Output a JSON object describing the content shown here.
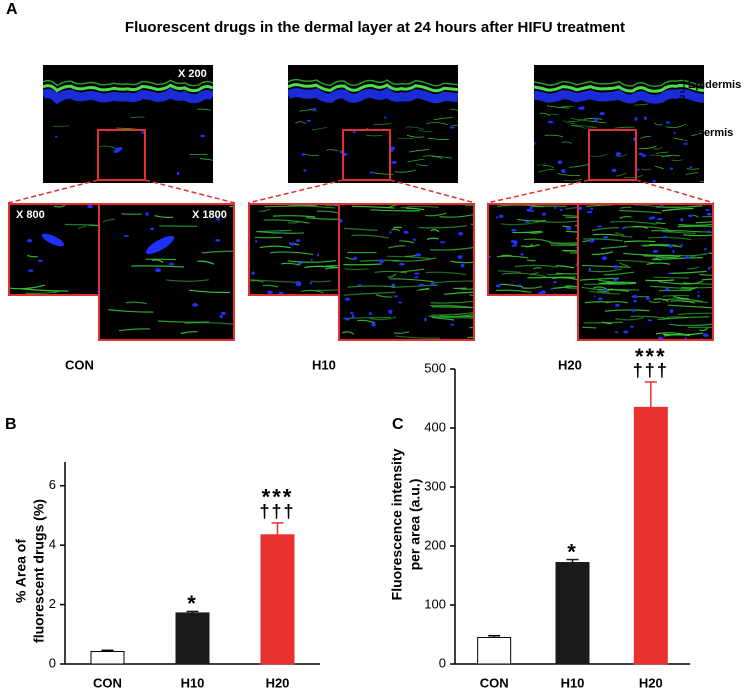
{
  "panel_a": {
    "panel": "A",
    "title": "Fluorescent drugs in the dermal layer at 24 hours after HIFU treatment",
    "magnification_low": "X 200",
    "magnification_mid": "X 800",
    "magnification_high": "X 1800",
    "layer_top": "Epidermis",
    "layer_bottom": "Dermis",
    "groups": [
      "CON",
      "H10",
      "H20"
    ]
  },
  "chart_data": [
    {
      "type": "bar",
      "panel": "B",
      "ylabel": [
        "% Area of",
        "fluorescent drugs (%)"
      ],
      "categories": [
        "CON",
        "H10",
        "H20"
      ],
      "values": [
        0.42,
        1.72,
        4.35
      ],
      "errors": [
        0.04,
        0.05,
        0.4
      ],
      "colors": [
        "#ffffff",
        "#1a1a1a",
        "#e8312e"
      ],
      "annotations": [
        null,
        [
          "*"
        ],
        [
          "***",
          "†††"
        ]
      ],
      "ylim": [
        0,
        6.8
      ],
      "yticks": [
        0,
        2,
        4,
        6
      ]
    },
    {
      "type": "bar",
      "panel": "C",
      "ylabel": [
        "Fluorescence intensity",
        "per area (a.u.)"
      ],
      "categories": [
        "CON",
        "H10",
        "H20"
      ],
      "values": [
        45,
        172,
        435
      ],
      "errors": [
        3,
        5,
        43
      ],
      "colors": [
        "#ffffff",
        "#1a1a1a",
        "#e8312e"
      ],
      "annotations": [
        null,
        [
          "*"
        ],
        [
          "***",
          "†††"
        ]
      ],
      "ylim": [
        0,
        500
      ],
      "yticks": [
        0,
        100,
        200,
        300,
        400,
        500
      ]
    }
  ]
}
